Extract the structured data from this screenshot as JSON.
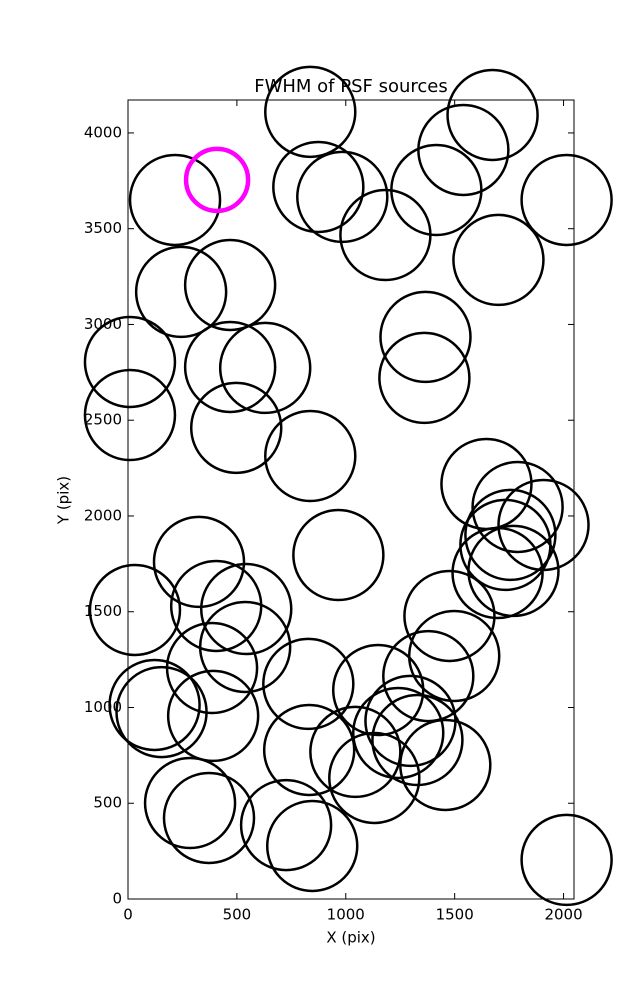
{
  "chart_data": {
    "type": "scatter",
    "title": "FWHM of PSF sources",
    "x_label": "X (pix)",
    "y_label": "Y (pix)",
    "xlim": [
      0,
      2048
    ],
    "ylim": [
      0,
      4172
    ],
    "xticks": [
      0,
      500,
      1000,
      1500,
      2000
    ],
    "yticks": [
      0,
      500,
      1000,
      1500,
      2000,
      2500,
      3000,
      3500,
      4000
    ],
    "series": [
      {
        "color": "#000000",
        "x": [
          216,
          837,
          1674,
          1540,
          874,
          984,
          1182,
          1416,
          2014,
          1701,
          244,
          469,
          1366,
          1361,
          9,
          9,
          469,
          630,
          497,
          837,
          1646,
          1789,
          1908,
          1733,
          1756,
          1697,
          1770,
          966,
          326,
          405,
          543,
          32,
          538,
          386,
          1476,
          1498,
          1379,
          1149,
          828,
          154,
          122,
          391,
          832,
          1044,
          1297,
          1241,
          1329,
          1457,
          1131,
          285,
          372,
          726,
          846,
          2014
        ],
        "values": [
          3650,
          4110,
          4094,
          3911,
          3718,
          3666,
          3467,
          3702,
          3650,
          3337,
          3170,
          3206,
          2935,
          2721,
          2804,
          2527,
          2778,
          2773,
          2460,
          2313,
          2167,
          2047,
          1953,
          1849,
          1901,
          1702,
          1713,
          1796,
          1760,
          1530,
          1514,
          1509,
          1316,
          1206,
          1478,
          1269,
          1164,
          1091,
          1123,
          976,
          1013,
          956,
          778,
          768,
          930,
          867,
          830,
          700,
          632,
          501,
          423,
          386,
          277,
          204
        ]
      },
      {
        "color": "#ff00ff",
        "x": [
          409
        ],
        "values": [
          3755
        ]
      }
    ]
  }
}
